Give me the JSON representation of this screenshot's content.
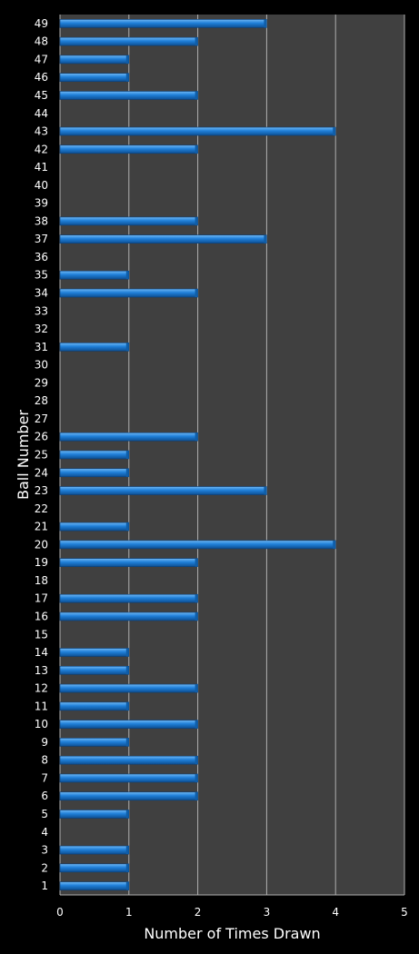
{
  "chart_data": {
    "type": "bar",
    "orientation": "horizontal",
    "title": "",
    "xlabel": "Number of Times Drawn",
    "ylabel": "Ball Number",
    "xlim": [
      0,
      5
    ],
    "x_ticks": [
      "0",
      "1",
      "2",
      "3",
      "4",
      "5"
    ],
    "categories": [
      "1",
      "2",
      "3",
      "4",
      "5",
      "6",
      "7",
      "8",
      "9",
      "10",
      "11",
      "12",
      "13",
      "14",
      "15",
      "16",
      "17",
      "18",
      "19",
      "20",
      "21",
      "22",
      "23",
      "24",
      "25",
      "26",
      "27",
      "28",
      "29",
      "30",
      "31",
      "32",
      "33",
      "34",
      "35",
      "36",
      "37",
      "38",
      "39",
      "40",
      "41",
      "42",
      "43",
      "44",
      "45",
      "46",
      "47",
      "48",
      "49"
    ],
    "values": [
      1,
      1,
      1,
      0,
      1,
      2,
      2,
      2,
      1,
      2,
      1,
      2,
      1,
      1,
      0,
      2,
      2,
      0,
      2,
      4,
      1,
      0,
      3,
      1,
      1,
      2,
      0,
      0,
      0,
      0,
      1,
      0,
      0,
      2,
      1,
      0,
      3,
      2,
      0,
      0,
      0,
      2,
      4,
      0,
      2,
      1,
      1,
      2,
      3
    ],
    "grid": "vertical",
    "legend": "none",
    "colors": {
      "background": "#000000",
      "plot_area": "#404040",
      "bar": "#1f7fd8",
      "bar_highlight": "#6fb8f5",
      "grid": "#b0b0b0",
      "text": "#ffffff"
    }
  }
}
